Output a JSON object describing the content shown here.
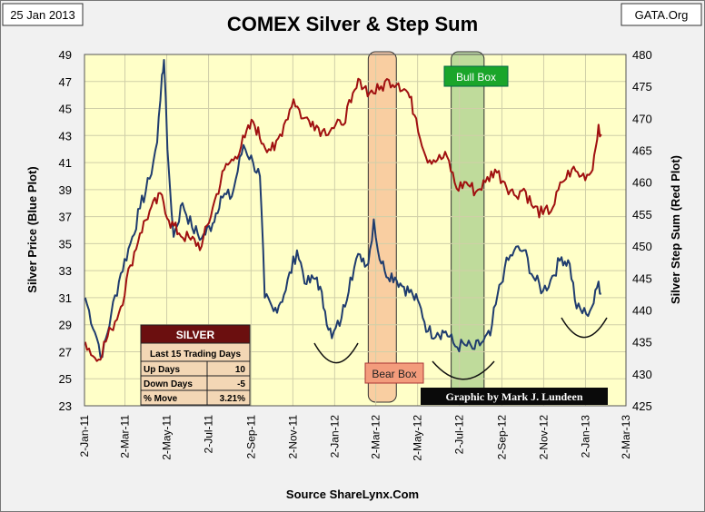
{
  "header": {
    "date": "25 Jan 2013",
    "title": "COMEX Silver & Step Sum",
    "site": "GATA.Org"
  },
  "footer": {
    "source": "Source ShareLynx.Com"
  },
  "credit": "Graphic by Mark J. Lundeen",
  "colors": {
    "plot_bg": "#ffffc8",
    "silver_line": "#1f3c6e",
    "stepsum_line": "#a01010",
    "bear_box": "#f7bd94",
    "bull_box": "#a9cf8c",
    "table_header": "#6b0f0f",
    "table_body": "#f3d7b5"
  },
  "annotations": [
    {
      "id": "bear",
      "label": "Bear Box",
      "from": "2012-02-20",
      "to": "2012-04-01"
    },
    {
      "id": "bull",
      "label": "Bull Box",
      "from": "2012-06-20",
      "to": "2012-08-07"
    }
  ],
  "table": {
    "title": "SILVER",
    "subtitle": "Last 15 Trading Days",
    "rows": [
      {
        "label": "Up Days",
        "value": "10"
      },
      {
        "label": "Down Days",
        "value": "-5"
      },
      {
        "label": "% Move",
        "value": "3.21%"
      }
    ]
  },
  "chart_data": {
    "type": "line",
    "title": "COMEX Silver & Step Sum",
    "xlabel": "",
    "ylabel": "Silver Price (Blue Plot)",
    "y2label": "Silver Step Sum (Red Plot)",
    "xlim": [
      "2011-01-02",
      "2013-03-02"
    ],
    "ylim": [
      23,
      49
    ],
    "y2lim": [
      425,
      480
    ],
    "yticks": [
      23,
      25,
      27,
      29,
      31,
      33,
      35,
      37,
      39,
      41,
      43,
      45,
      47,
      49
    ],
    "y2ticks": [
      425,
      430,
      435,
      440,
      445,
      450,
      455,
      460,
      465,
      470,
      475,
      480
    ],
    "xticks": [
      "2-Jan-11",
      "2-Mar-11",
      "2-May-11",
      "2-Jul-11",
      "2-Sep-11",
      "2-Nov-11",
      "2-Jan-12",
      "2-Mar-12",
      "2-May-12",
      "2-Jul-12",
      "2-Sep-12",
      "2-Nov-12",
      "2-Jan-13",
      "2-Mar-13"
    ],
    "grid": true,
    "legend": "none",
    "series": [
      {
        "axis": "left",
        "points": [
          [
            "2011-01-03",
            31.0
          ],
          [
            "2011-01-20",
            28.0
          ],
          [
            "2011-01-28",
            26.6
          ],
          [
            "2011-02-10",
            29.8
          ],
          [
            "2011-02-24",
            32.8
          ],
          [
            "2011-03-10",
            35.0
          ],
          [
            "2011-03-24",
            37.6
          ],
          [
            "2011-04-07",
            39.8
          ],
          [
            "2011-04-18",
            42.5
          ],
          [
            "2011-04-25",
            47.5
          ],
          [
            "2011-04-28",
            48.6
          ],
          [
            "2011-05-03",
            42.0
          ],
          [
            "2011-05-12",
            35.5
          ],
          [
            "2011-05-25",
            38.0
          ],
          [
            "2011-06-08",
            36.2
          ],
          [
            "2011-06-22",
            35.4
          ],
          [
            "2011-07-08",
            36.5
          ],
          [
            "2011-07-20",
            38.5
          ],
          [
            "2011-08-05",
            38.5
          ],
          [
            "2011-08-22",
            42.3
          ],
          [
            "2011-09-05",
            41.0
          ],
          [
            "2011-09-15",
            40.0
          ],
          [
            "2011-09-22",
            31.0
          ],
          [
            "2011-10-05",
            30.0
          ],
          [
            "2011-10-20",
            31.2
          ],
          [
            "2011-11-08",
            34.5
          ],
          [
            "2011-11-22",
            32.0
          ],
          [
            "2011-12-07",
            32.5
          ],
          [
            "2011-12-19",
            30.0
          ],
          [
            "2011-12-29",
            28.0
          ],
          [
            "2012-01-12",
            29.5
          ],
          [
            "2012-01-25",
            32.5
          ],
          [
            "2012-02-08",
            34.2
          ],
          [
            "2012-02-20",
            33.5
          ],
          [
            "2012-02-28",
            36.8
          ],
          [
            "2012-03-05",
            34.5
          ],
          [
            "2012-03-15",
            33.0
          ],
          [
            "2012-03-30",
            32.5
          ],
          [
            "2012-04-12",
            31.8
          ],
          [
            "2012-04-25",
            31.2
          ],
          [
            "2012-05-07",
            30.2
          ],
          [
            "2012-05-17",
            28.5
          ],
          [
            "2012-05-31",
            28.4
          ],
          [
            "2012-06-12",
            28.5
          ],
          [
            "2012-06-26",
            27.4
          ],
          [
            "2012-07-10",
            27.5
          ],
          [
            "2012-07-24",
            27.2
          ],
          [
            "2012-08-06",
            27.8
          ],
          [
            "2012-08-16",
            28.2
          ],
          [
            "2012-08-24",
            30.5
          ],
          [
            "2012-09-06",
            33.2
          ],
          [
            "2012-09-20",
            34.5
          ],
          [
            "2012-10-04",
            34.5
          ],
          [
            "2012-10-18",
            32.5
          ],
          [
            "2012-11-01",
            31.5
          ],
          [
            "2012-11-12",
            32.3
          ],
          [
            "2012-11-28",
            34.0
          ],
          [
            "2012-12-10",
            33.5
          ],
          [
            "2012-12-20",
            30.2
          ],
          [
            "2013-01-03",
            29.8
          ],
          [
            "2013-01-14",
            30.6
          ],
          [
            "2013-01-21",
            32.2
          ],
          [
            "2013-01-25",
            31.3
          ]
        ]
      },
      {
        "axis": "right",
        "points": [
          [
            "2011-01-03",
            435.0
          ],
          [
            "2011-01-20",
            432.0
          ],
          [
            "2011-02-10",
            437.0
          ],
          [
            "2011-02-24",
            440.5
          ],
          [
            "2011-03-10",
            447.0
          ],
          [
            "2011-03-24",
            452.0
          ],
          [
            "2011-04-07",
            455.5
          ],
          [
            "2011-04-25",
            458.0
          ],
          [
            "2011-05-05",
            454.0
          ],
          [
            "2011-05-20",
            452.0
          ],
          [
            "2011-06-06",
            451.0
          ],
          [
            "2011-06-22",
            450.0
          ],
          [
            "2011-07-08",
            456.0
          ],
          [
            "2011-07-25",
            462.0
          ],
          [
            "2011-08-10",
            464.0
          ],
          [
            "2011-08-24",
            467.0
          ],
          [
            "2011-09-05",
            469.5
          ],
          [
            "2011-09-20",
            466.0
          ],
          [
            "2011-10-06",
            465.0
          ],
          [
            "2011-10-20",
            469.0
          ],
          [
            "2011-11-03",
            473.0
          ],
          [
            "2011-11-17",
            470.0
          ],
          [
            "2011-12-01",
            469.5
          ],
          [
            "2011-12-15",
            468.0
          ],
          [
            "2011-12-29",
            468.5
          ],
          [
            "2012-01-12",
            469.0
          ],
          [
            "2012-01-26",
            472.5
          ],
          [
            "2012-02-08",
            476.0
          ],
          [
            "2012-02-22",
            474.0
          ],
          [
            "2012-03-07",
            474.5
          ],
          [
            "2012-03-21",
            476.0
          ],
          [
            "2012-04-04",
            475.5
          ],
          [
            "2012-04-18",
            474.0
          ],
          [
            "2012-04-30",
            470.0
          ],
          [
            "2012-05-14",
            464.0
          ],
          [
            "2012-05-31",
            463.5
          ],
          [
            "2012-06-14",
            464.0
          ],
          [
            "2012-06-28",
            459.0
          ],
          [
            "2012-07-12",
            460.0
          ],
          [
            "2012-07-26",
            458.5
          ],
          [
            "2012-08-09",
            460.0
          ],
          [
            "2012-08-23",
            462.0
          ],
          [
            "2012-09-06",
            460.0
          ],
          [
            "2012-09-20",
            458.0
          ],
          [
            "2012-10-04",
            459.0
          ],
          [
            "2012-10-18",
            456.0
          ],
          [
            "2012-11-01",
            455.0
          ],
          [
            "2012-11-15",
            456.0
          ],
          [
            "2012-11-29",
            460.0
          ],
          [
            "2012-12-13",
            462.0
          ],
          [
            "2012-12-27",
            461.0
          ],
          [
            "2013-01-10",
            461.5
          ],
          [
            "2013-01-17",
            465.5
          ],
          [
            "2013-01-21",
            469.0
          ],
          [
            "2013-01-25",
            467.5
          ]
        ]
      }
    ]
  }
}
